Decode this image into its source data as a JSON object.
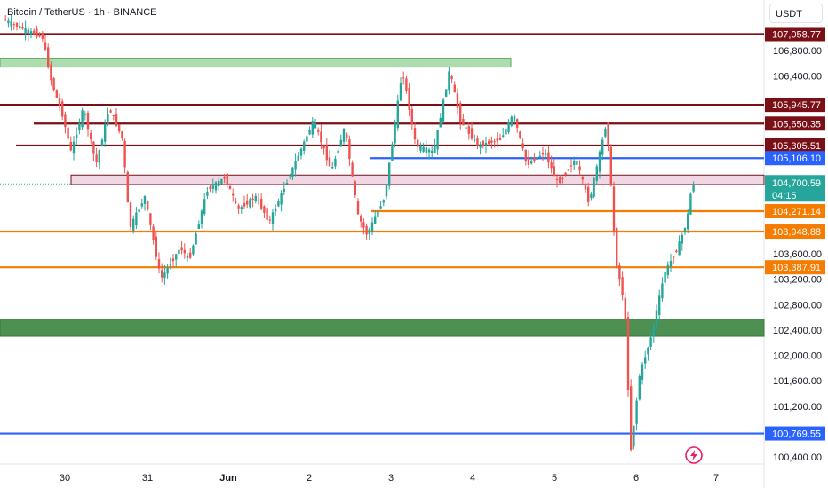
{
  "header": {
    "symbol_title": "Bitcoin / TetherUS · 1h · BINANCE",
    "currency_label": "USDT"
  },
  "colors": {
    "up": "#26a69a",
    "down": "#ef5350",
    "resistance": "#7a0f16",
    "support_orange": "#f57c00",
    "support_blue": "#2962ff",
    "zone_green": "#4caf50",
    "zone_pink": "#e1a3c0",
    "zone_dark_green": "#2e7d32"
  },
  "chart_data": {
    "type": "candlestick",
    "ylim": [
      100250,
      107500
    ],
    "y_tick_labels": [
      "106,800.00",
      "106,400.00",
      "103,600.00",
      "103,200.00",
      "102,800.00",
      "102,400.00",
      "102,000.00",
      "101,600.00",
      "101,200.00",
      "100,400.00"
    ],
    "y_ticks": [
      106800,
      106400,
      103600,
      103200,
      102800,
      102400,
      102000,
      101600,
      101200,
      100400
    ],
    "x_tick_labels": [
      "30",
      "31",
      "Jun",
      "2",
      "3",
      "4",
      "5",
      "6",
      "7"
    ],
    "price_levels": [
      {
        "label": "107,058.77",
        "value": 107058.77,
        "style": "resistance"
      },
      {
        "label": "105,945.77",
        "value": 105945.77,
        "style": "resistance"
      },
      {
        "label": "105,650.35",
        "value": 105650.35,
        "style": "resistance"
      },
      {
        "label": "105,305.51",
        "value": 105305.51,
        "style": "resistance"
      },
      {
        "label": "105,106.10",
        "value": 105106.1,
        "style": "support_blue"
      },
      {
        "label": "104,271.14",
        "value": 104271.14,
        "style": "support_orange"
      },
      {
        "label": "103,948.88",
        "value": 103948.88,
        "style": "support_orange"
      },
      {
        "label": "103,387.91",
        "value": 103387.91,
        "style": "support_orange"
      },
      {
        "label": "100,769.55",
        "value": 100769.55,
        "style": "support_blue"
      }
    ],
    "current_price": {
      "label": "104,700.59",
      "countdown": "04:15",
      "value": 104700.59
    },
    "zones": [
      {
        "name": "green-zone-top",
        "from": 106540,
        "to": 106680,
        "color": "zone_green"
      },
      {
        "name": "pink-zone",
        "from": 104690,
        "to": 104840,
        "color": "zone_pink"
      },
      {
        "name": "dark-green-zone",
        "from": 102300,
        "to": 102570,
        "color": "zone_dark_green"
      }
    ]
  }
}
